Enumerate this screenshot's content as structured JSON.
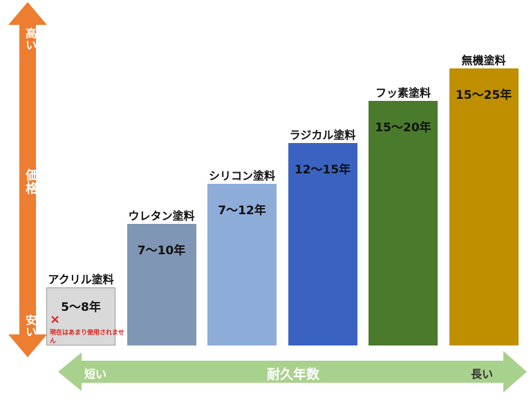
{
  "chart_data": {
    "type": "bar",
    "categories": [
      "アクリル塗料",
      "ウレタン塗料",
      "シリコン塗料",
      "ラジカル塗料",
      "フッ素塗料",
      "無機塗料"
    ],
    "value_labels": [
      "5～8年",
      "7～10年",
      "7～12年",
      "12～15年",
      "15～20年",
      "15～25年"
    ],
    "ranges": [
      [
        5,
        8
      ],
      [
        7,
        10
      ],
      [
        7,
        12
      ],
      [
        12,
        15
      ],
      [
        15,
        20
      ],
      [
        15,
        25
      ]
    ],
    "relative_price": [
      1,
      2,
      3,
      4,
      5,
      6
    ],
    "colors": [
      "#d9d9d9",
      "#8096b5",
      "#8eacd8",
      "#3a63c1",
      "#4a7a2c",
      "#bf8f00"
    ],
    "xlabel": "耐久年数",
    "x_low": "短い",
    "x_high": "長い",
    "ylabel": "価格",
    "y_low": "安い",
    "y_high": "高い",
    "note": {
      "mark": "×",
      "text": "現在はあまり使用されません"
    }
  },
  "axis_colors": {
    "price_arrow": "#ed7d31",
    "durability_arrow": "#a9d18e"
  }
}
